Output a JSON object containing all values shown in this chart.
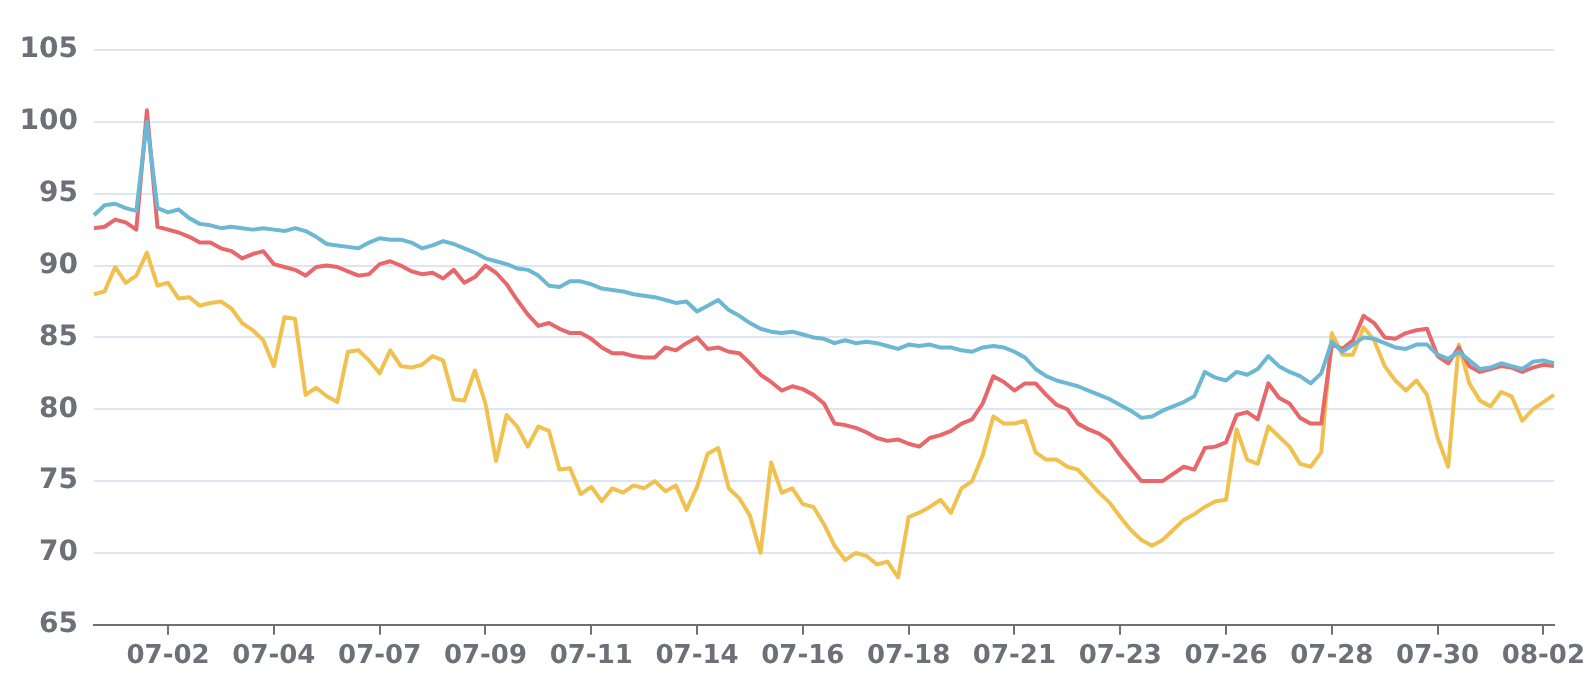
{
  "chart_data": {
    "type": "line",
    "categories": [
      null,
      null,
      null,
      null,
      null,
      null,
      null,
      "07-02",
      null,
      null,
      null,
      null,
      null,
      null,
      null,
      null,
      null,
      "07-04",
      null,
      null,
      null,
      null,
      null,
      null,
      null,
      null,
      null,
      "07-07",
      null,
      null,
      null,
      null,
      null,
      null,
      null,
      null,
      null,
      "07-09",
      null,
      null,
      null,
      null,
      null,
      null,
      null,
      null,
      null,
      "07-11",
      null,
      null,
      null,
      null,
      null,
      null,
      null,
      null,
      null,
      "07-14",
      null,
      null,
      null,
      null,
      null,
      null,
      null,
      null,
      null,
      "07-16",
      null,
      null,
      null,
      null,
      null,
      null,
      null,
      null,
      null,
      "07-18",
      null,
      null,
      null,
      null,
      null,
      null,
      null,
      null,
      null,
      "07-21",
      null,
      null,
      null,
      null,
      null,
      null,
      null,
      null,
      null,
      "07-23",
      null,
      null,
      null,
      null,
      null,
      null,
      null,
      null,
      null,
      "07-26",
      null,
      null,
      null,
      null,
      null,
      null,
      null,
      null,
      null,
      "07-28",
      null,
      null,
      null,
      null,
      null,
      null,
      null,
      null,
      null,
      "07-30",
      null,
      null,
      null,
      null,
      null,
      null,
      null,
      null,
      null,
      "08-02",
      null
    ],
    "series": [
      {
        "color": "#6cb8d4",
        "values": [
          93.5,
          94.2,
          94.3,
          94.0,
          93.8,
          100.0,
          94.0,
          93.7,
          93.9,
          93.3,
          92.9,
          92.8,
          92.6,
          92.7,
          92.6,
          92.5,
          92.6,
          92.5,
          92.4,
          92.6,
          92.4,
          92.0,
          91.5,
          91.4,
          91.3,
          91.2,
          91.6,
          91.9,
          91.8,
          91.8,
          91.6,
          91.2,
          91.4,
          91.7,
          91.5,
          91.2,
          90.9,
          90.5,
          90.3,
          90.1,
          89.8,
          89.7,
          89.3,
          88.6,
          88.5,
          88.9,
          88.9,
          88.7,
          88.4,
          88.3,
          88.2,
          88.0,
          87.9,
          87.8,
          87.6,
          87.4,
          87.5,
          86.8,
          87.2,
          87.6,
          86.9,
          86.5,
          86.0,
          85.6,
          85.4,
          85.3,
          85.4,
          85.2,
          85.0,
          84.9,
          84.6,
          84.8,
          84.6,
          84.7,
          84.6,
          84.4,
          84.2,
          84.5,
          84.4,
          84.5,
          84.3,
          84.3,
          84.1,
          84.0,
          84.3,
          84.4,
          84.3,
          84.0,
          83.6,
          82.8,
          82.3,
          82.0,
          81.8,
          81.6,
          81.3,
          81.0,
          80.7,
          80.3,
          79.9,
          79.4,
          79.5,
          79.9,
          80.2,
          80.5,
          80.9,
          82.6,
          82.2,
          82.0,
          82.6,
          82.4,
          82.8,
          83.7,
          83.0,
          82.6,
          82.3,
          81.8,
          82.5,
          84.7,
          84.0,
          84.5,
          85.0,
          84.9,
          84.6,
          84.3,
          84.2,
          84.5,
          84.5,
          83.8,
          83.5,
          84.0,
          83.4,
          82.8,
          82.9,
          83.2,
          83.0,
          82.8,
          83.3,
          83.4,
          83.2
        ]
      },
      {
        "color": "#e8676b",
        "values": [
          92.6,
          92.7,
          93.2,
          93.0,
          92.5,
          100.8,
          92.7,
          92.5,
          92.3,
          92.0,
          91.6,
          91.6,
          91.2,
          91.0,
          90.5,
          90.8,
          91.0,
          90.1,
          89.9,
          89.7,
          89.3,
          89.9,
          90.0,
          89.9,
          89.6,
          89.3,
          89.4,
          90.1,
          90.3,
          90.0,
          89.6,
          89.4,
          89.5,
          89.1,
          89.7,
          88.8,
          89.2,
          90.0,
          89.5,
          88.7,
          87.6,
          86.6,
          85.8,
          86.0,
          85.6,
          85.3,
          85.3,
          84.9,
          84.3,
          83.9,
          83.9,
          83.7,
          83.6,
          83.6,
          84.3,
          84.1,
          84.6,
          85.0,
          84.2,
          84.3,
          84.0,
          83.9,
          83.2,
          82.4,
          81.9,
          81.3,
          81.6,
          81.4,
          81.0,
          80.4,
          79.0,
          78.9,
          78.7,
          78.4,
          78.0,
          77.8,
          77.9,
          77.6,
          77.4,
          78.0,
          78.2,
          78.5,
          79.0,
          79.3,
          80.4,
          82.3,
          81.9,
          81.3,
          81.8,
          81.8,
          81.0,
          80.3,
          80.0,
          79.0,
          78.6,
          78.3,
          77.8,
          76.8,
          75.9,
          75.0,
          75.0,
          75.0,
          75.5,
          76.0,
          75.8,
          77.3,
          77.4,
          77.7,
          79.6,
          79.8,
          79.3,
          81.8,
          80.8,
          80.4,
          79.4,
          79.0,
          79.0,
          84.5,
          84.2,
          84.8,
          86.5,
          86.0,
          85.0,
          84.9,
          85.3,
          85.5,
          85.6,
          83.7,
          83.2,
          84.3,
          83.0,
          82.6,
          82.8,
          83.0,
          82.9,
          82.6,
          82.9,
          83.1,
          83.0
        ]
      },
      {
        "color": "#f0c14f",
        "values": [
          88.0,
          88.2,
          89.9,
          88.8,
          89.3,
          90.9,
          88.6,
          88.8,
          87.7,
          87.8,
          87.2,
          87.4,
          87.5,
          87.0,
          86.0,
          85.5,
          84.8,
          83.0,
          86.4,
          86.3,
          81.0,
          81.5,
          80.9,
          80.5,
          84.0,
          84.1,
          83.4,
          82.5,
          84.1,
          83.0,
          82.9,
          83.1,
          83.7,
          83.4,
          80.7,
          80.6,
          82.7,
          80.4,
          76.4,
          79.6,
          78.8,
          77.4,
          78.8,
          78.5,
          75.8,
          75.9,
          74.1,
          74.6,
          73.6,
          74.5,
          74.2,
          74.7,
          74.5,
          75.0,
          74.3,
          74.7,
          73.0,
          74.6,
          76.9,
          77.3,
          74.5,
          73.8,
          72.6,
          70.0,
          76.3,
          74.2,
          74.5,
          73.4,
          73.2,
          72.0,
          70.5,
          69.5,
          70.0,
          69.8,
          69.2,
          69.4,
          68.3,
          72.5,
          72.8,
          73.2,
          73.7,
          72.8,
          74.5,
          75.0,
          76.8,
          79.5,
          79.0,
          79.0,
          79.2,
          77.0,
          76.5,
          76.5,
          76.0,
          75.8,
          75.0,
          74.2,
          73.5,
          72.5,
          71.6,
          70.9,
          70.5,
          70.9,
          71.6,
          72.3,
          72.7,
          73.2,
          73.6,
          73.7,
          78.6,
          76.5,
          76.2,
          78.8,
          78.1,
          77.4,
          76.2,
          76.0,
          77.0,
          85.3,
          83.8,
          83.8,
          85.7,
          84.8,
          83.0,
          82.0,
          81.3,
          82.0,
          81.0,
          78.0,
          76.0,
          84.5,
          81.8,
          80.6,
          80.2,
          81.2,
          80.9,
          79.2,
          80.0,
          80.5,
          81.0
        ]
      }
    ],
    "ylim": [
      65,
      105
    ],
    "yticks": [
      65,
      70,
      75,
      80,
      85,
      90,
      95,
      100,
      105
    ],
    "grid": "y",
    "legend": false,
    "marker": "none",
    "line_style": "solid"
  }
}
